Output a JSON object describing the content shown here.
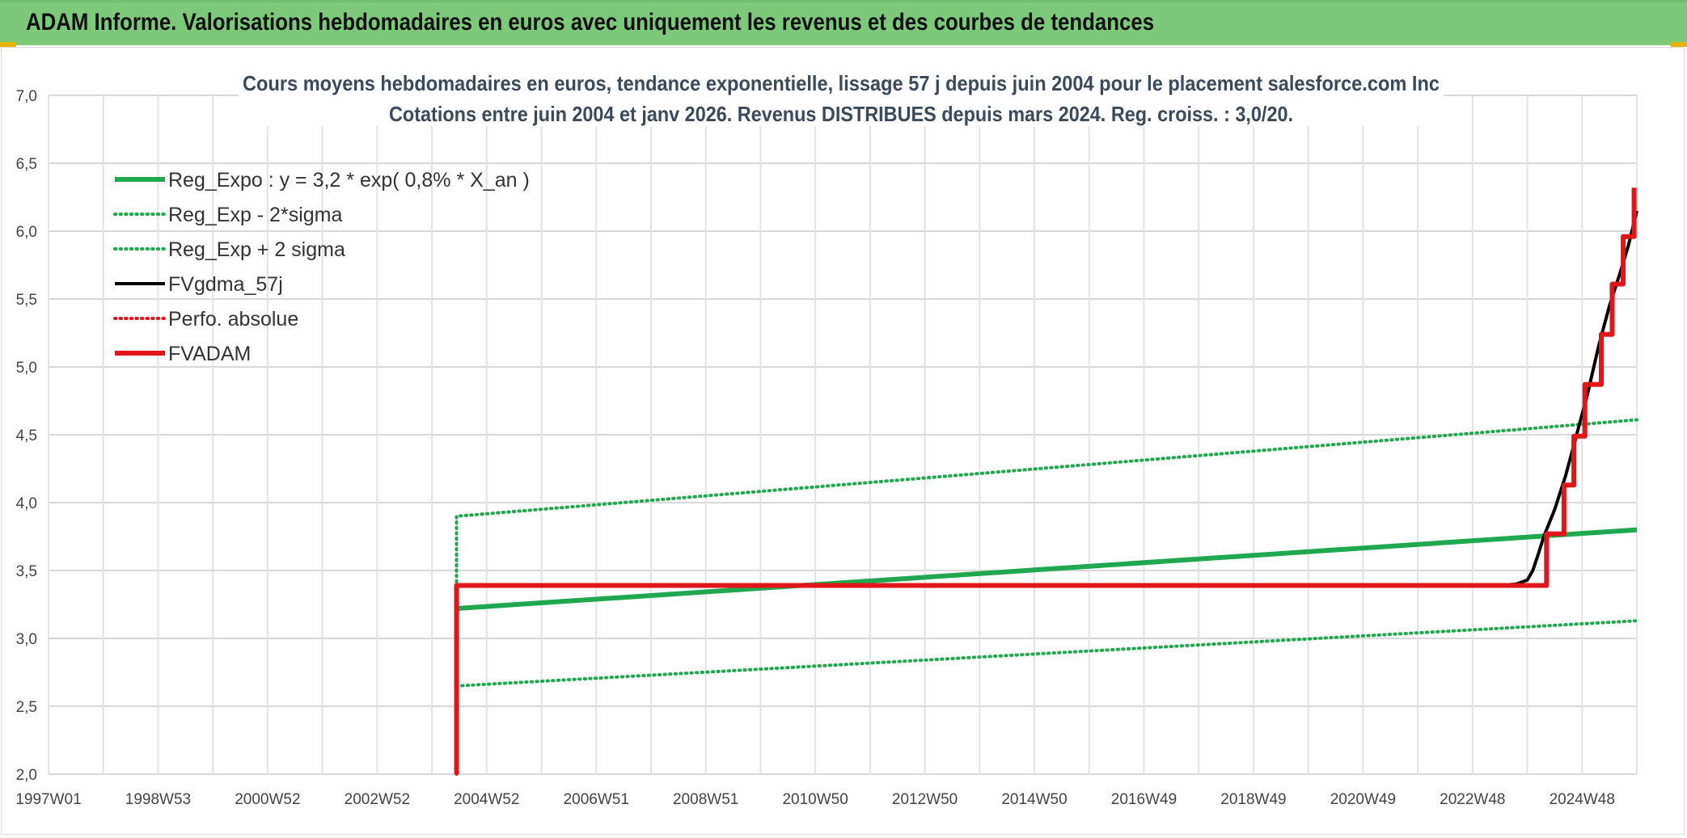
{
  "header": {
    "title": "ADAM Informe. Valorisations hebdomadaires en euros avec uniquement les revenus et des courbes de tendances"
  },
  "chart_data": {
    "type": "line",
    "title": "Cours moyens hebdomadaires en euros, tendance exponentielle, lissage 57 j depuis juin 2004 pour le placement salesforce.com Inc",
    "subtitle": "Cotations entre juin 2004 et janv 2026. Revenus DISTRIBUES depuis mars 2024. Reg. croiss. : 3,0/20.",
    "xlabel": "",
    "ylabel": "",
    "ylim": [
      2.0,
      7.0
    ],
    "xlim": [
      1997.0,
      2026.0
    ],
    "y_ticks": [
      "2,0",
      "2,5",
      "3,0",
      "3,5",
      "4,0",
      "4,5",
      "5,0",
      "5,5",
      "6,0",
      "6,5",
      "7,0"
    ],
    "x_ticks": [
      {
        "x": 1997.0,
        "label": "1997W01"
      },
      {
        "x": 1999.0,
        "label": "1998W53"
      },
      {
        "x": 2001.0,
        "label": "2000W52"
      },
      {
        "x": 2003.0,
        "label": "2002W52"
      },
      {
        "x": 2005.0,
        "label": "2004W52"
      },
      {
        "x": 2007.0,
        "label": "2006W51"
      },
      {
        "x": 2009.0,
        "label": "2008W51"
      },
      {
        "x": 2011.0,
        "label": "2010W50"
      },
      {
        "x": 2013.0,
        "label": "2012W50"
      },
      {
        "x": 2015.0,
        "label": "2014W50"
      },
      {
        "x": 2017.0,
        "label": "2016W49"
      },
      {
        "x": 2019.0,
        "label": "2018W49"
      },
      {
        "x": 2021.0,
        "label": "2020W49"
      },
      {
        "x": 2023.0,
        "label": "2022W48"
      },
      {
        "x": 2025.0,
        "label": "2024W48"
      }
    ],
    "grid": true,
    "legend": "top-left",
    "series": [
      {
        "name": "Reg_Expo : y = 3,2 * exp( 0,8% *  X_an )",
        "color": "#1fa84f",
        "style": "solid",
        "width": 6,
        "points": [
          [
            2004.45,
            3.22
          ],
          [
            2026.0,
            3.8
          ]
        ]
      },
      {
        "name": "Reg_Exp - 2*sigma",
        "color": "#1fa84f",
        "style": "dotted",
        "width": 4,
        "points": [
          [
            2004.45,
            2.65
          ],
          [
            2026.0,
            3.13
          ]
        ]
      },
      {
        "name": "Reg_Exp + 2 sigma",
        "color": "#1fa84f",
        "style": "dotted",
        "width": 4,
        "points": [
          [
            2004.45,
            3.22
          ],
          [
            2004.45,
            3.9
          ],
          [
            2026.0,
            4.61
          ]
        ]
      },
      {
        "name": "FVgdma_57j",
        "color": "#000000",
        "style": "solid",
        "width": 4,
        "points": [
          [
            2004.45,
            3.39
          ],
          [
            2023.5,
            3.39
          ],
          [
            2023.8,
            3.4
          ],
          [
            2024.0,
            3.43
          ],
          [
            2024.1,
            3.5
          ],
          [
            2024.2,
            3.62
          ],
          [
            2024.3,
            3.75
          ],
          [
            2024.5,
            3.95
          ],
          [
            2024.7,
            4.2
          ],
          [
            2024.9,
            4.5
          ],
          [
            2025.1,
            4.8
          ],
          [
            2025.3,
            5.15
          ],
          [
            2025.5,
            5.45
          ],
          [
            2025.7,
            5.7
          ],
          [
            2025.85,
            5.9
          ],
          [
            2026.0,
            6.15
          ]
        ]
      },
      {
        "name": "Perfo. absolue",
        "color": "#e0161b",
        "style": "dotted",
        "width": 4,
        "points": [
          [
            2004.45,
            2.0
          ],
          [
            2004.45,
            3.39
          ],
          [
            2023.3,
            3.39
          ]
        ]
      },
      {
        "name": "FVADAM",
        "color": "#e0161b",
        "style": "solid",
        "width": 6,
        "points": [
          [
            2004.45,
            2.0
          ],
          [
            2004.45,
            3.39
          ],
          [
            2024.35,
            3.39
          ],
          [
            2024.35,
            3.77
          ],
          [
            2024.67,
            3.77
          ],
          [
            2024.67,
            4.13
          ],
          [
            2024.85,
            4.13
          ],
          [
            2024.85,
            4.49
          ],
          [
            2025.05,
            4.49
          ],
          [
            2025.05,
            4.87
          ],
          [
            2025.35,
            4.87
          ],
          [
            2025.35,
            5.24
          ],
          [
            2025.55,
            5.24
          ],
          [
            2025.55,
            5.61
          ],
          [
            2025.75,
            5.61
          ],
          [
            2025.75,
            5.96
          ],
          [
            2025.95,
            5.96
          ],
          [
            2025.95,
            6.32
          ]
        ]
      }
    ]
  }
}
